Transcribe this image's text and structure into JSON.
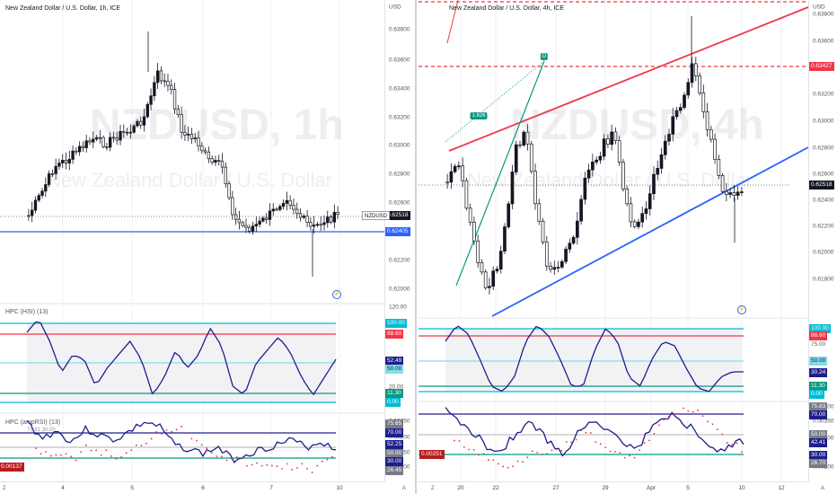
{
  "left": {
    "title": "New Zealand Dollar / U.S. Dollar, 1h, ICE",
    "currency": "USD",
    "watermark_symbol": "NZDUSD, 1h",
    "watermark_name": "New Zealand Dollar / U.S. Dollar",
    "price_ticks": [
      "0.63800",
      "0.63600",
      "0.63400",
      "0.63200",
      "0.63000",
      "0.62800",
      "0.62600",
      "0.62200",
      "0.62000"
    ],
    "symbol_tag": "NZDUSD",
    "last_price": "0.62518",
    "support_price": "0.62405",
    "ind1_legend": "HPC (HSI) (13)",
    "ind1_ticks": [
      "120.00",
      "20.00"
    ],
    "ind1_tags": [
      "100.00",
      "88.60",
      "52.49",
      "50.00",
      "11.30",
      "0.00"
    ],
    "ind2_legend": "HPC (ampRSI) (13)",
    "ind2_sub": "75.61  30.00",
    "ind2_ticks": [
      "0.00250",
      "0.00200",
      "0.00150",
      "0.00100"
    ],
    "ind2_tags": [
      "75.65",
      "70.00",
      "52.25",
      "50.00",
      "30.00",
      "26.45"
    ],
    "ind2_value": "0.00137",
    "time_labels": [
      "4",
      "5",
      "6",
      "7",
      "10"
    ],
    "corner_left": "Z",
    "corner_right": "A"
  },
  "right": {
    "title": "New Zealand Dollar / U.S. Dollar, 4h, ICE",
    "currency": "USD",
    "watermark_symbol": "NZDUSD, 4h",
    "watermark_name": "New Zealand Dollar / U.S. Dollar",
    "price_ticks": [
      "0.63800",
      "0.63600",
      "0.63200",
      "0.63000",
      "0.62800",
      "0.62600",
      "0.62400",
      "0.62200",
      "0.62000",
      "0.61800"
    ],
    "resistance_price": "0.63427",
    "last_price": "0.62518",
    "label_d": "D",
    "label_ratio": "1.626",
    "ind1_tags": [
      "100.00",
      "88.60",
      "75.00",
      "50.00",
      "30.24",
      "11.30",
      "0.00"
    ],
    "ind2_ticks": [
      "0.00400",
      "0.00350",
      "0.00300",
      "0.00200"
    ],
    "ind2_tags": [
      "75.83",
      "70.00",
      "50.00",
      "42.41",
      "30.00",
      "26.70"
    ],
    "ind2_value": "0.00251",
    "time_labels": [
      "20",
      "22",
      "27",
      "29",
      "Apr",
      "5",
      "10",
      "12"
    ],
    "corner_left": "Z",
    "corner_right": "A"
  },
  "colors": {
    "up": "#131722",
    "wick": "#131722",
    "blue_line": "#2962ff",
    "red_line": "#f23645",
    "green_line": "#089981",
    "cyan_line": "#00bcd4",
    "osc_line": "#1e1e8c",
    "dot_red": "#e0304a",
    "tag_blue": "#2962ff",
    "tag_red": "#f23645",
    "tag_green": "#089981",
    "tag_navy": "#1e1e8c",
    "tag_dark": "#131722",
    "tag_gray": "#787b86",
    "tag_cyan": "#00bcd4",
    "tag_darkred": "#b71c1c"
  }
}
